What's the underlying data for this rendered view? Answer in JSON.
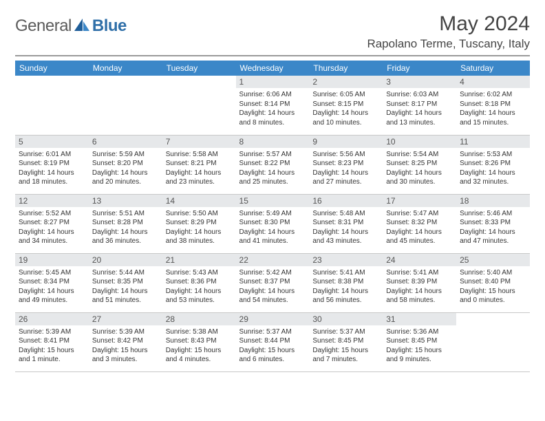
{
  "brand": {
    "word1": "General",
    "word2": "Blue"
  },
  "title": "May 2024",
  "location": "Rapolano Terme, Tuscany, Italy",
  "colors": {
    "header_bg": "#3b87c8",
    "header_text": "#ffffff",
    "daynum_bg": "#e6e8ea",
    "daynum_text": "#555555",
    "body_text": "#333333",
    "rule": "#c8c8c8",
    "logo_gray": "#5b5b5b",
    "logo_blue": "#2f6fa8"
  },
  "weekdays": [
    "Sunday",
    "Monday",
    "Tuesday",
    "Wednesday",
    "Thursday",
    "Friday",
    "Saturday"
  ],
  "weeks": [
    [
      {
        "n": "",
        "lines": []
      },
      {
        "n": "",
        "lines": []
      },
      {
        "n": "",
        "lines": []
      },
      {
        "n": "1",
        "lines": [
          "Sunrise: 6:06 AM",
          "Sunset: 8:14 PM",
          "Daylight: 14 hours and 8 minutes."
        ]
      },
      {
        "n": "2",
        "lines": [
          "Sunrise: 6:05 AM",
          "Sunset: 8:15 PM",
          "Daylight: 14 hours and 10 minutes."
        ]
      },
      {
        "n": "3",
        "lines": [
          "Sunrise: 6:03 AM",
          "Sunset: 8:17 PM",
          "Daylight: 14 hours and 13 minutes."
        ]
      },
      {
        "n": "4",
        "lines": [
          "Sunrise: 6:02 AM",
          "Sunset: 8:18 PM",
          "Daylight: 14 hours and 15 minutes."
        ]
      }
    ],
    [
      {
        "n": "5",
        "lines": [
          "Sunrise: 6:01 AM",
          "Sunset: 8:19 PM",
          "Daylight: 14 hours and 18 minutes."
        ]
      },
      {
        "n": "6",
        "lines": [
          "Sunrise: 5:59 AM",
          "Sunset: 8:20 PM",
          "Daylight: 14 hours and 20 minutes."
        ]
      },
      {
        "n": "7",
        "lines": [
          "Sunrise: 5:58 AM",
          "Sunset: 8:21 PM",
          "Daylight: 14 hours and 23 minutes."
        ]
      },
      {
        "n": "8",
        "lines": [
          "Sunrise: 5:57 AM",
          "Sunset: 8:22 PM",
          "Daylight: 14 hours and 25 minutes."
        ]
      },
      {
        "n": "9",
        "lines": [
          "Sunrise: 5:56 AM",
          "Sunset: 8:23 PM",
          "Daylight: 14 hours and 27 minutes."
        ]
      },
      {
        "n": "10",
        "lines": [
          "Sunrise: 5:54 AM",
          "Sunset: 8:25 PM",
          "Daylight: 14 hours and 30 minutes."
        ]
      },
      {
        "n": "11",
        "lines": [
          "Sunrise: 5:53 AM",
          "Sunset: 8:26 PM",
          "Daylight: 14 hours and 32 minutes."
        ]
      }
    ],
    [
      {
        "n": "12",
        "lines": [
          "Sunrise: 5:52 AM",
          "Sunset: 8:27 PM",
          "Daylight: 14 hours and 34 minutes."
        ]
      },
      {
        "n": "13",
        "lines": [
          "Sunrise: 5:51 AM",
          "Sunset: 8:28 PM",
          "Daylight: 14 hours and 36 minutes."
        ]
      },
      {
        "n": "14",
        "lines": [
          "Sunrise: 5:50 AM",
          "Sunset: 8:29 PM",
          "Daylight: 14 hours and 38 minutes."
        ]
      },
      {
        "n": "15",
        "lines": [
          "Sunrise: 5:49 AM",
          "Sunset: 8:30 PM",
          "Daylight: 14 hours and 41 minutes."
        ]
      },
      {
        "n": "16",
        "lines": [
          "Sunrise: 5:48 AM",
          "Sunset: 8:31 PM",
          "Daylight: 14 hours and 43 minutes."
        ]
      },
      {
        "n": "17",
        "lines": [
          "Sunrise: 5:47 AM",
          "Sunset: 8:32 PM",
          "Daylight: 14 hours and 45 minutes."
        ]
      },
      {
        "n": "18",
        "lines": [
          "Sunrise: 5:46 AM",
          "Sunset: 8:33 PM",
          "Daylight: 14 hours and 47 minutes."
        ]
      }
    ],
    [
      {
        "n": "19",
        "lines": [
          "Sunrise: 5:45 AM",
          "Sunset: 8:34 PM",
          "Daylight: 14 hours and 49 minutes."
        ]
      },
      {
        "n": "20",
        "lines": [
          "Sunrise: 5:44 AM",
          "Sunset: 8:35 PM",
          "Daylight: 14 hours and 51 minutes."
        ]
      },
      {
        "n": "21",
        "lines": [
          "Sunrise: 5:43 AM",
          "Sunset: 8:36 PM",
          "Daylight: 14 hours and 53 minutes."
        ]
      },
      {
        "n": "22",
        "lines": [
          "Sunrise: 5:42 AM",
          "Sunset: 8:37 PM",
          "Daylight: 14 hours and 54 minutes."
        ]
      },
      {
        "n": "23",
        "lines": [
          "Sunrise: 5:41 AM",
          "Sunset: 8:38 PM",
          "Daylight: 14 hours and 56 minutes."
        ]
      },
      {
        "n": "24",
        "lines": [
          "Sunrise: 5:41 AM",
          "Sunset: 8:39 PM",
          "Daylight: 14 hours and 58 minutes."
        ]
      },
      {
        "n": "25",
        "lines": [
          "Sunrise: 5:40 AM",
          "Sunset: 8:40 PM",
          "Daylight: 15 hours and 0 minutes."
        ]
      }
    ],
    [
      {
        "n": "26",
        "lines": [
          "Sunrise: 5:39 AM",
          "Sunset: 8:41 PM",
          "Daylight: 15 hours and 1 minute."
        ]
      },
      {
        "n": "27",
        "lines": [
          "Sunrise: 5:39 AM",
          "Sunset: 8:42 PM",
          "Daylight: 15 hours and 3 minutes."
        ]
      },
      {
        "n": "28",
        "lines": [
          "Sunrise: 5:38 AM",
          "Sunset: 8:43 PM",
          "Daylight: 15 hours and 4 minutes."
        ]
      },
      {
        "n": "29",
        "lines": [
          "Sunrise: 5:37 AM",
          "Sunset: 8:44 PM",
          "Daylight: 15 hours and 6 minutes."
        ]
      },
      {
        "n": "30",
        "lines": [
          "Sunrise: 5:37 AM",
          "Sunset: 8:45 PM",
          "Daylight: 15 hours and 7 minutes."
        ]
      },
      {
        "n": "31",
        "lines": [
          "Sunrise: 5:36 AM",
          "Sunset: 8:45 PM",
          "Daylight: 15 hours and 9 minutes."
        ]
      },
      {
        "n": "",
        "lines": []
      }
    ]
  ]
}
